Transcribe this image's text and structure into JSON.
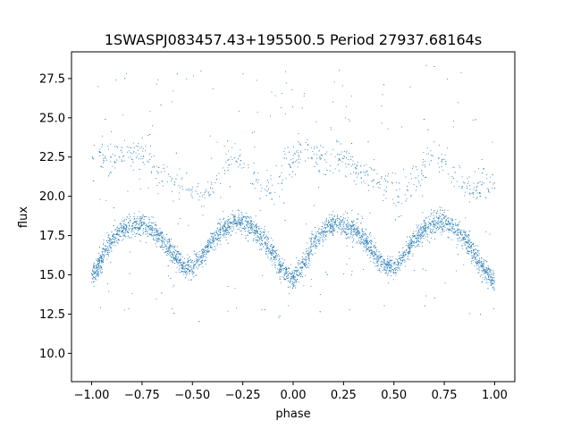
{
  "chart_data": {
    "type": "scatter",
    "title": "1SWASPJ083457.43+195500.5 Period 27937.68164s",
    "xlabel": "phase",
    "ylabel": "flux",
    "xlim": [
      -1.1,
      1.1
    ],
    "ylim": [
      8.2,
      29.2
    ],
    "x_ticks": [
      -1.0,
      -0.75,
      -0.5,
      -0.25,
      0.0,
      0.25,
      0.5,
      0.75,
      1.0
    ],
    "x_tick_labels": [
      "−1.00",
      "−0.75",
      "−0.50",
      "−0.25",
      "0.00",
      "0.25",
      "0.50",
      "0.75",
      "1.00"
    ],
    "y_ticks": [
      10.0,
      12.5,
      15.0,
      17.5,
      20.0,
      22.5,
      25.0,
      27.5
    ],
    "y_tick_labels": [
      "10.0",
      "12.5",
      "15.0",
      "17.5",
      "20.0",
      "22.5",
      "25.0",
      "27.5"
    ],
    "grid": false,
    "marker_color": "#1f77b4",
    "series": [
      {
        "main_band_light_curve": {
          "phase": [
            -1.0,
            -0.95,
            -0.9,
            -0.85,
            -0.8,
            -0.75,
            -0.7,
            -0.65,
            -0.6,
            -0.55,
            -0.5,
            -0.45,
            -0.4,
            -0.35,
            -0.3,
            -0.25,
            -0.2,
            -0.15,
            -0.1,
            -0.05,
            0.0,
            0.05,
            0.1,
            0.15,
            0.2,
            0.25,
            0.3,
            0.35,
            0.4,
            0.45,
            0.5,
            0.55,
            0.6,
            0.65,
            0.7,
            0.75,
            0.8,
            0.85,
            0.9,
            0.95,
            1.0
          ],
          "flux": [
            14.8,
            16.0,
            17.2,
            17.9,
            18.2,
            18.2,
            17.9,
            17.3,
            16.4,
            15.6,
            15.4,
            16.2,
            17.2,
            17.9,
            18.3,
            18.4,
            18.0,
            17.3,
            16.3,
            15.2,
            14.6,
            15.7,
            17.0,
            17.8,
            18.2,
            18.2,
            17.9,
            17.3,
            16.4,
            15.6,
            15.4,
            16.2,
            17.2,
            17.9,
            18.3,
            18.4,
            18.0,
            17.3,
            16.3,
            15.2,
            14.6
          ],
          "scatter": 0.35
        },
        "upper_band_light_curve": {
          "phase": [
            -0.97,
            -0.85,
            -0.75,
            -0.7,
            -0.45,
            -0.35,
            -0.3,
            -0.25,
            -0.2,
            -0.12,
            0.03,
            0.15,
            0.25,
            0.3,
            0.55,
            0.65,
            0.7,
            0.75,
            0.8,
            0.88,
            0.98
          ],
          "flux": [
            22.8,
            22.3,
            22.6,
            22.0,
            19.8,
            21.8,
            22.4,
            22.4,
            21.5,
            20.3,
            22.8,
            22.3,
            22.6,
            22.0,
            19.8,
            21.8,
            22.4,
            22.4,
            21.5,
            20.3,
            21.0
          ],
          "scatter": 0.5
        },
        "point_count": 5200
      }
    ]
  }
}
